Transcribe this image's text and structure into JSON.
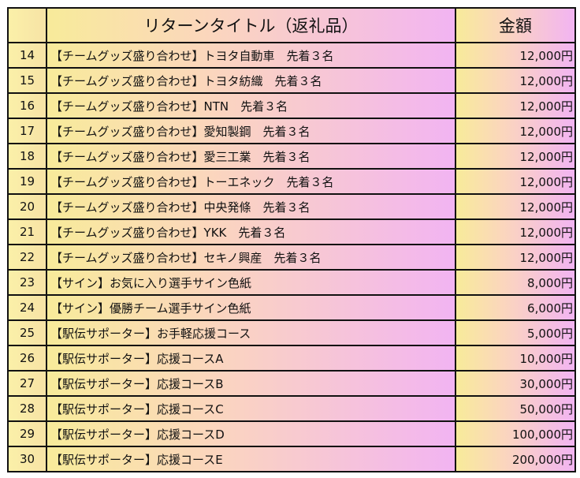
{
  "table": {
    "headers": [
      "",
      "リターンタイトル（返礼品）",
      "金額"
    ],
    "rows": [
      {
        "no": "14",
        "title": "【チームグッズ盛り合わせ】トヨタ自動車　先着３名",
        "amount": "12,000円"
      },
      {
        "no": "15",
        "title": "【チームグッズ盛り合わせ】トヨタ紡織　先着３名",
        "amount": "12,000円"
      },
      {
        "no": "16",
        "title": "【チームグッズ盛り合わせ】NTN　先着３名",
        "amount": "12,000円"
      },
      {
        "no": "17",
        "title": "【チームグッズ盛り合わせ】愛知製鋼　先着３名",
        "amount": "12,000円"
      },
      {
        "no": "18",
        "title": "【チームグッズ盛り合わせ】愛三工業　先着３名",
        "amount": "12,000円"
      },
      {
        "no": "19",
        "title": "【チームグッズ盛り合わせ】トーエネック　先着３名",
        "amount": "12,000円"
      },
      {
        "no": "20",
        "title": "【チームグッズ盛り合わせ】中央発條　先着３名",
        "amount": "12,000円"
      },
      {
        "no": "21",
        "title": "【チームグッズ盛り合わせ】YKK　先着３名",
        "amount": "12,000円"
      },
      {
        "no": "22",
        "title": "【チームグッズ盛り合わせ】セキノ興産　先着３名",
        "amount": "12,000円"
      },
      {
        "no": "23",
        "title": "【サイン】お気に入り選手サイン色紙",
        "amount": "8,000円"
      },
      {
        "no": "24",
        "title": "【サイン】優勝チーム選手サイン色紙",
        "amount": "6,000円"
      },
      {
        "no": "25",
        "title": "【駅伝サポーター】お手軽応援コース",
        "amount": "5,000円"
      },
      {
        "no": "26",
        "title": "【駅伝サポーター】応援コースA",
        "amount": "10,000円"
      },
      {
        "no": "27",
        "title": "【駅伝サポーター】応援コースB",
        "amount": "30,000円"
      },
      {
        "no": "28",
        "title": "【駅伝サポーター】応援コースC",
        "amount": "50,000円"
      },
      {
        "no": "29",
        "title": "【駅伝サポーター】応援コースD",
        "amount": "100,000円"
      },
      {
        "no": "30",
        "title": "【駅伝サポーター】応援コースE",
        "amount": "200,000円"
      }
    ]
  }
}
